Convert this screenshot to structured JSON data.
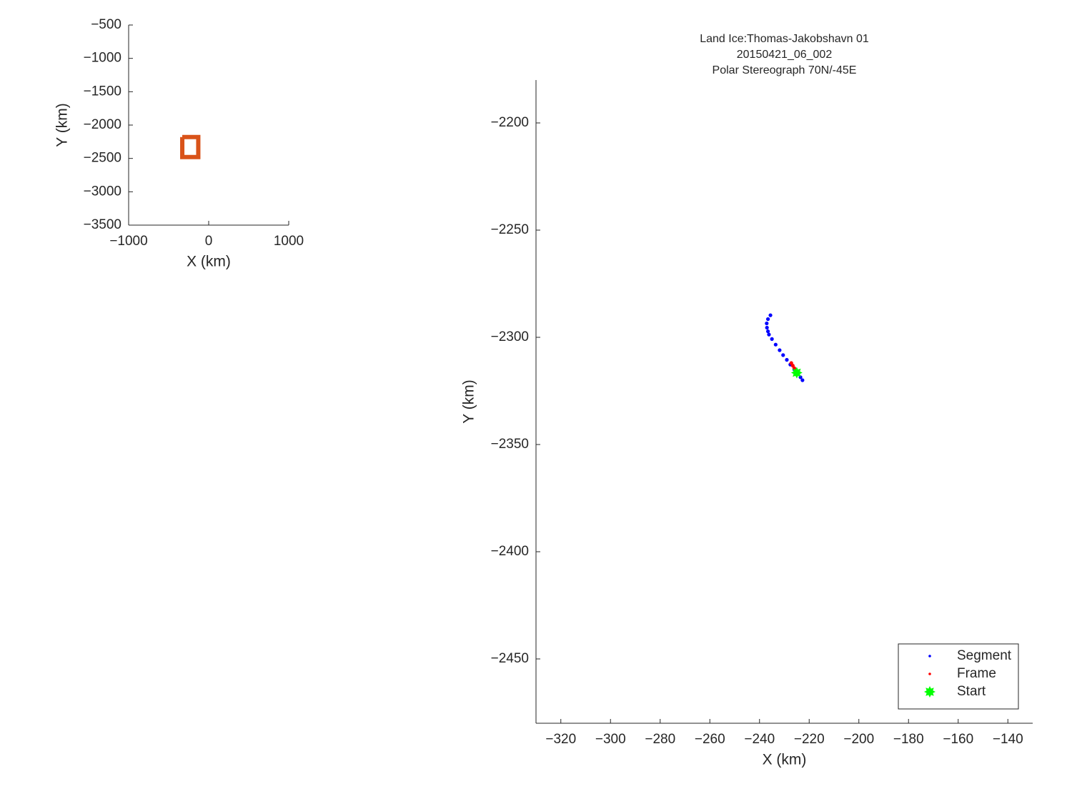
{
  "chart_data": [
    {
      "type": "line",
      "xlabel": "X (km)",
      "ylabel": "Y (km)",
      "xlim": [
        -1000,
        1000
      ],
      "ylim": [
        -3500,
        -500
      ],
      "xticks": [
        {
          "value": -1000,
          "label": "−1000"
        },
        0,
        1000
      ],
      "yticks": [
        {
          "value": -3500,
          "label": "−3500"
        },
        {
          "value": -3000,
          "label": "−3000"
        },
        {
          "value": -2500,
          "label": "−2500"
        },
        {
          "value": -2000,
          "label": "−2000"
        },
        {
          "value": -1500,
          "label": "−1500"
        },
        {
          "value": -1000,
          "label": "−1000"
        },
        {
          "value": -500,
          "label": "−500"
        }
      ],
      "series": [
        {
          "color": "#d95319",
          "x": [
            -330,
            -130,
            -130,
            -330,
            -330
          ],
          "y": [
            -2180,
            -2180,
            -2480,
            -2480,
            -2180
          ]
        }
      ]
    },
    {
      "type": "scatter",
      "title": [
        "Land Ice:Thomas-Jakobshavn 01",
        "20150421_06_002",
        "Polar Stereograph 70N/-45E"
      ],
      "xlabel": "X (km)",
      "ylabel": "Y (km)",
      "xlim": [
        -330,
        -130
      ],
      "ylim": [
        -2480,
        -2180
      ],
      "xticks": [
        {
          "value": -320,
          "label": "−320"
        },
        {
          "value": -300,
          "label": "−300"
        },
        {
          "value": -280,
          "label": "−280"
        },
        {
          "value": -260,
          "label": "−260"
        },
        {
          "value": -240,
          "label": "−240"
        },
        {
          "value": -220,
          "label": "−220"
        },
        {
          "value": -200,
          "label": "−200"
        },
        {
          "value": -180,
          "label": "−180"
        },
        {
          "value": -160,
          "label": "−160"
        },
        {
          "value": -140,
          "label": "−140"
        }
      ],
      "yticks": [
        {
          "value": -2450,
          "label": "−2450"
        },
        {
          "value": -2400,
          "label": "−2400"
        },
        {
          "value": -2350,
          "label": "−2350"
        },
        {
          "value": -2300,
          "label": "−2300"
        },
        {
          "value": -2250,
          "label": "−2250"
        },
        {
          "value": -2200,
          "label": "−2200"
        }
      ],
      "legend": "southeast",
      "series": [
        {
          "name": "Segment",
          "color": "#0000ff",
          "marker": "dot",
          "x": [
            -235.6,
            -236.6,
            -237.1,
            -237.0,
            -236.6,
            -236.2,
            -235.0,
            -233.5,
            -231.9,
            -230.5,
            -229.0,
            -227.6,
            -226.0,
            -224.5,
            -223.5,
            -222.7
          ],
          "y": [
            -2289.7,
            -2291.5,
            -2293.5,
            -2295.5,
            -2297.2,
            -2298.7,
            -2300.8,
            -2303.4,
            -2306.0,
            -2308.3,
            -2310.5,
            -2312.7,
            -2315.0,
            -2317.0,
            -2318.6,
            -2320.0
          ]
        },
        {
          "name": "Frame",
          "color": "#ff0000",
          "marker": "dot",
          "x": [
            -227.2,
            -226.6,
            -226.0
          ],
          "y": [
            -2312.0,
            -2313.2,
            -2314.4
          ]
        },
        {
          "name": "Start",
          "color": "#00ff00",
          "marker": "star",
          "x": [
            -225.0
          ],
          "y": [
            -2316.5
          ]
        }
      ]
    }
  ]
}
